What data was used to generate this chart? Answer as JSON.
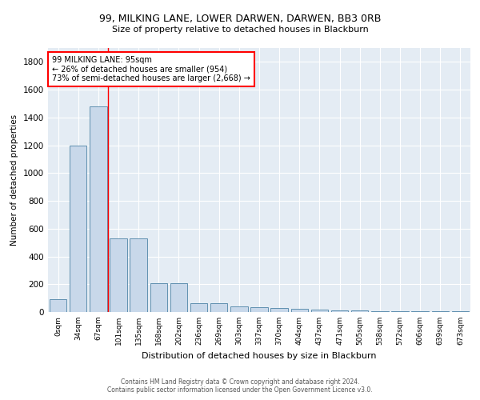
{
  "title": "99, MILKING LANE, LOWER DARWEN, DARWEN, BB3 0RB",
  "subtitle": "Size of property relative to detached houses in Blackburn",
  "xlabel": "Distribution of detached houses by size in Blackburn",
  "ylabel": "Number of detached properties",
  "bar_color": "#c8d8ea",
  "bar_edge_color": "#6090b0",
  "background_color": "#e4ecf4",
  "categories": [
    "0sqm",
    "34sqm",
    "67sqm",
    "101sqm",
    "135sqm",
    "168sqm",
    "202sqm",
    "236sqm",
    "269sqm",
    "303sqm",
    "337sqm",
    "370sqm",
    "404sqm",
    "437sqm",
    "471sqm",
    "505sqm",
    "538sqm",
    "572sqm",
    "606sqm",
    "639sqm",
    "673sqm"
  ],
  "values": [
    90,
    1200,
    1480,
    530,
    530,
    205,
    205,
    65,
    65,
    40,
    35,
    30,
    25,
    20,
    10,
    10,
    5,
    5,
    5,
    5,
    5
  ],
  "ylim": [
    0,
    1900
  ],
  "yticks": [
    0,
    200,
    400,
    600,
    800,
    1000,
    1200,
    1400,
    1600,
    1800
  ],
  "property_line_x": 2.5,
  "annotation_line1": "99 MILKING LANE: 95sqm",
  "annotation_line2": "← 26% of detached houses are smaller (954)",
  "annotation_line3": "73% of semi-detached houses are larger (2,668) →",
  "footer_line1": "Contains HM Land Registry data © Crown copyright and database right 2024.",
  "footer_line2": "Contains public sector information licensed under the Open Government Licence v3.0."
}
